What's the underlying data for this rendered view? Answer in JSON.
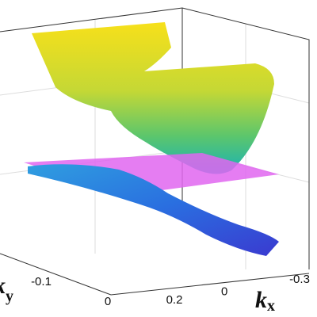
{
  "chart_data": {
    "type": "surface3d",
    "xlabel": "k",
    "xlabel_sub": "x",
    "ylabel": "k",
    "ylabel_sub": "y",
    "xticks": [
      0.2,
      0,
      -0.3
    ],
    "yticks": [
      -0.1,
      0
    ]
  }
}
